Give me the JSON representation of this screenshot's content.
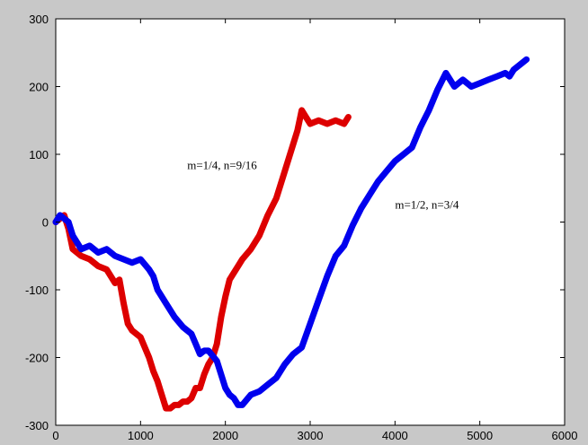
{
  "chart_data": {
    "type": "line",
    "xlim": [
      0,
      6000
    ],
    "ylim": [
      -300,
      300
    ],
    "x_ticks": [
      0,
      1000,
      2000,
      3000,
      4000,
      5000,
      6000
    ],
    "y_ticks": [
      -300,
      -200,
      -100,
      0,
      100,
      200,
      300
    ],
    "x_tick_labels": [
      "0",
      "1000",
      "2000",
      "3000",
      "4000",
      "5000",
      "6000"
    ],
    "y_tick_labels": [
      "-300",
      "-200",
      "-100",
      "0",
      "100",
      "200",
      "300"
    ],
    "grid": false,
    "background": "#c8c8c8",
    "plot_background": "#ffffff",
    "annotations": [
      {
        "text": "m=1/4, n=9/16",
        "x": 1550,
        "y": 78
      },
      {
        "text": "m=1/2, n=3/4",
        "x": 4000,
        "y": 20
      }
    ],
    "series": [
      {
        "color": "#dd0000",
        "x": [
          0,
          100,
          150,
          200,
          300,
          400,
          500,
          600,
          700,
          750,
          800,
          850,
          900,
          1000,
          1100,
          1150,
          1200,
          1250,
          1300,
          1350,
          1400,
          1450,
          1500,
          1550,
          1600,
          1650,
          1700,
          1750,
          1800,
          1850,
          1900,
          1950,
          2000,
          2050,
          2100,
          2150,
          2200,
          2300,
          2400,
          2500,
          2600,
          2700,
          2800,
          2850,
          2900,
          2950,
          3000,
          3100,
          3200,
          3300,
          3400,
          3450
        ],
        "y": [
          0,
          10,
          -10,
          -40,
          -50,
          -55,
          -65,
          -70,
          -90,
          -85,
          -120,
          -150,
          -160,
          -170,
          -200,
          -220,
          -235,
          -255,
          -275,
          -275,
          -270,
          -270,
          -265,
          -265,
          -260,
          -245,
          -245,
          -225,
          -210,
          -200,
          -180,
          -140,
          -110,
          -85,
          -75,
          -65,
          -55,
          -40,
          -20,
          10,
          35,
          75,
          115,
          135,
          165,
          155,
          145,
          150,
          145,
          150,
          145,
          155
        ]
      },
      {
        "color": "#0000ee",
        "x": [
          0,
          50,
          100,
          150,
          200,
          250,
          300,
          400,
          500,
          600,
          700,
          800,
          900,
          1000,
          1100,
          1150,
          1200,
          1300,
          1400,
          1500,
          1600,
          1650,
          1700,
          1750,
          1800,
          1900,
          2000,
          2050,
          2100,
          2150,
          2200,
          2300,
          2400,
          2500,
          2600,
          2700,
          2800,
          2900,
          3000,
          3100,
          3200,
          3300,
          3400,
          3500,
          3600,
          3700,
          3800,
          3900,
          4000,
          4100,
          4200,
          4300,
          4400,
          4500,
          4600,
          4700,
          4800,
          4900,
          5000,
          5100,
          5200,
          5300,
          5350,
          5400,
          5450,
          5500,
          5550
        ],
        "y": [
          0,
          10,
          5,
          0,
          -20,
          -30,
          -40,
          -35,
          -45,
          -40,
          -50,
          -55,
          -60,
          -55,
          -70,
          -80,
          -100,
          -120,
          -140,
          -155,
          -165,
          -180,
          -195,
          -190,
          -190,
          -205,
          -245,
          -255,
          -260,
          -270,
          -270,
          -255,
          -250,
          -240,
          -230,
          -210,
          -195,
          -185,
          -150,
          -115,
          -80,
          -50,
          -35,
          -5,
          20,
          40,
          60,
          75,
          90,
          100,
          110,
          140,
          165,
          195,
          220,
          200,
          210,
          200,
          205,
          210,
          215,
          220,
          215,
          225,
          230,
          235,
          240
        ]
      }
    ]
  }
}
